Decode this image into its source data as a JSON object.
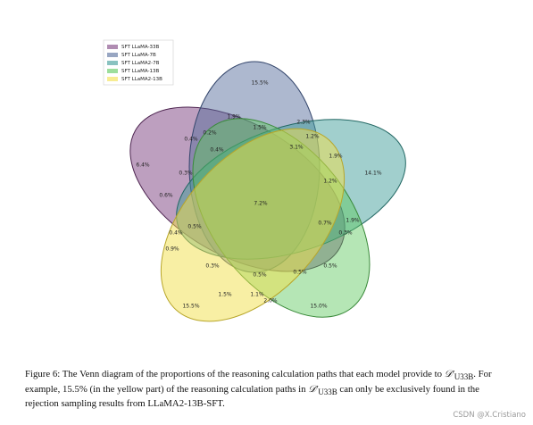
{
  "legend": {
    "items": [
      {
        "label": "SFT LLaMA-33B",
        "color": "#7b3f7f"
      },
      {
        "label": "SFT LLaMA-7B",
        "color": "#536a9a"
      },
      {
        "label": "SFT LLaMA2-7B",
        "color": "#3a9a96"
      },
      {
        "label": "SFT LLaMA-13B",
        "color": "#5ac85a"
      },
      {
        "label": "SFT LLaMA2-13B",
        "color": "#f2e04a"
      }
    ]
  },
  "regions": [
    "15.5%",
    "6.4%",
    "14.1%",
    "15.0%",
    "15.5%",
    "7.2%",
    "1.9%",
    "2.3%",
    "1.5%",
    "0.2%",
    "0.4%",
    "0.4%",
    "1.2%",
    "3.1%",
    "1.9%",
    "1.2%",
    "0.3%",
    "0.6%",
    "0.7%",
    "1.9%",
    "0.3%",
    "0.4%",
    "0.5%",
    "0.9%",
    "0.3%",
    "0.5%",
    "0.5%",
    "0.5%",
    "1.5%",
    "1.1%",
    "2.0%"
  ],
  "caption": {
    "prefix": "Figure 6: The Venn diagram of the proportions of the reasoning calculation paths that each model provide to ",
    "dataset_symbol": "𝒟′",
    "dataset_subscript": "U33B",
    "mid": ". For example, 15.5% (in the yellow part) of the reasoning calculation paths in ",
    "suffix": " can only be exclusively found in the rejection sampling results from LLaMA2-13B-SFT."
  },
  "watermark": "CSDN @X.Cristiano"
}
